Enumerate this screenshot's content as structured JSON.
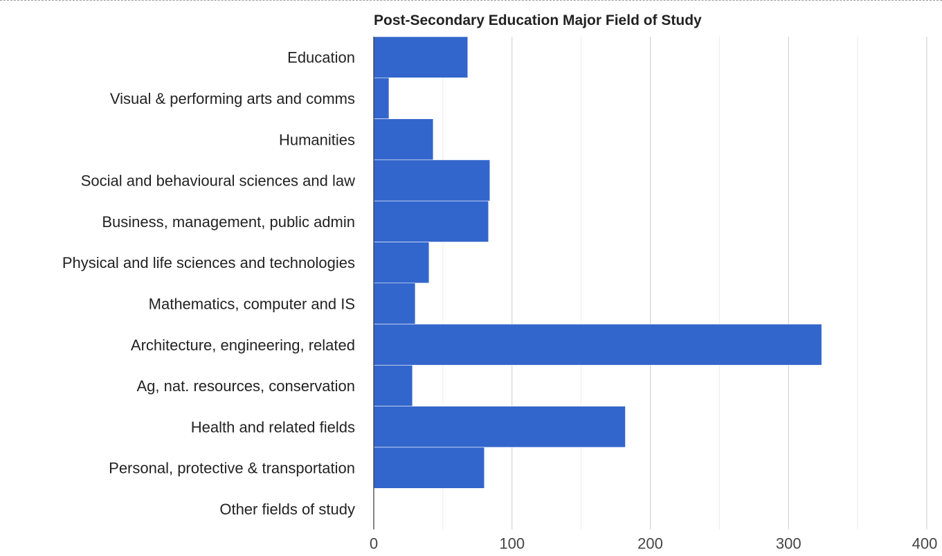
{
  "chart_data": {
    "type": "bar",
    "orientation": "horizontal",
    "title": "Post-Secondary Education Major Field of Study",
    "xlabel": "",
    "ylabel": "",
    "categories": [
      "Education",
      "Visual & performing arts and comms",
      "Humanities",
      "Social and behavioural sciences and law",
      "Business, management, public admin",
      "Physical and life sciences and technologies",
      "Mathematics, computer and IS",
      "Architecture, engineering, related",
      "Ag, nat. resources, conservation",
      "Health and related fields",
      "Personal, protective & transportation",
      "Other fields of study"
    ],
    "values": [
      68,
      11,
      43,
      84,
      83,
      40,
      30,
      324,
      28,
      182,
      80,
      0
    ],
    "xlim": [
      0,
      400
    ],
    "xticks": [
      0,
      100,
      200,
      300,
      400
    ],
    "gridlines": true,
    "legend": "none",
    "bar_color": "#3366cc",
    "gridline_color": "#cccccc"
  }
}
